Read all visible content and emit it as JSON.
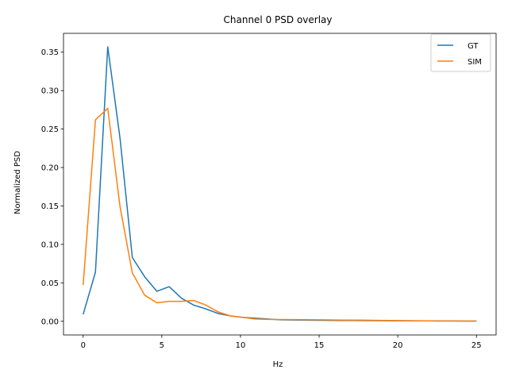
{
  "chart_data": {
    "type": "line",
    "title": "Channel 0 PSD overlay",
    "xlabel": "Hz",
    "ylabel": "Normalized PSD",
    "xlim": [
      -1.25,
      26.25
    ],
    "ylim": [
      -0.0178,
      0.3745
    ],
    "xticks": [
      0,
      5,
      10,
      15,
      20,
      25
    ],
    "xtick_labels": [
      "0",
      "5",
      "10",
      "15",
      "20",
      "25"
    ],
    "yticks": [
      0.0,
      0.05,
      0.1,
      0.15,
      0.2,
      0.25,
      0.3,
      0.35
    ],
    "ytick_labels": [
      "0.00",
      "0.05",
      "0.10",
      "0.15",
      "0.20",
      "0.25",
      "0.30",
      "0.35"
    ],
    "grid": false,
    "legend_position": "top-right",
    "x": [
      0,
      0.78125,
      1.5625,
      2.34375,
      3.125,
      3.90625,
      4.6875,
      5.46875,
      6.25,
      7.03125,
      7.8125,
      8.59375,
      9.375,
      10.15625,
      10.9375,
      11.71875,
      12.5,
      13.28125,
      14.0625,
      14.84375,
      15.625,
      16.40625,
      17.1875,
      17.96875,
      18.75,
      19.53125,
      20.3125,
      21.09375,
      21.875,
      22.65625,
      23.4375,
      24.21875,
      25
    ],
    "series": [
      {
        "name": "GT",
        "color": "#1f77b4",
        "values": [
          0.009,
          0.064,
          0.357,
          0.238,
          0.083,
          0.058,
          0.039,
          0.045,
          0.03,
          0.021,
          0.016,
          0.01,
          0.007,
          0.005,
          0.004,
          0.003,
          0.002,
          0.0017,
          0.0015,
          0.0013,
          0.0012,
          0.0011,
          0.001,
          0.0009,
          0.0008,
          0.0007,
          0.0006,
          0.0005,
          0.0005,
          0.0004,
          0.0004,
          0.0003,
          0.0003
        ]
      },
      {
        "name": "SIM",
        "color": "#ff7f0e",
        "values": [
          0.047,
          0.262,
          0.277,
          0.149,
          0.063,
          0.034,
          0.024,
          0.026,
          0.026,
          0.027,
          0.021,
          0.012,
          0.007,
          0.005,
          0.003,
          0.0025,
          0.0023,
          0.0022,
          0.0021,
          0.002,
          0.0018,
          0.0016,
          0.0015,
          0.0014,
          0.0012,
          0.001,
          0.0008,
          0.0006,
          0.0005,
          0.0004,
          0.0004,
          0.0003,
          0.0003
        ]
      }
    ]
  }
}
